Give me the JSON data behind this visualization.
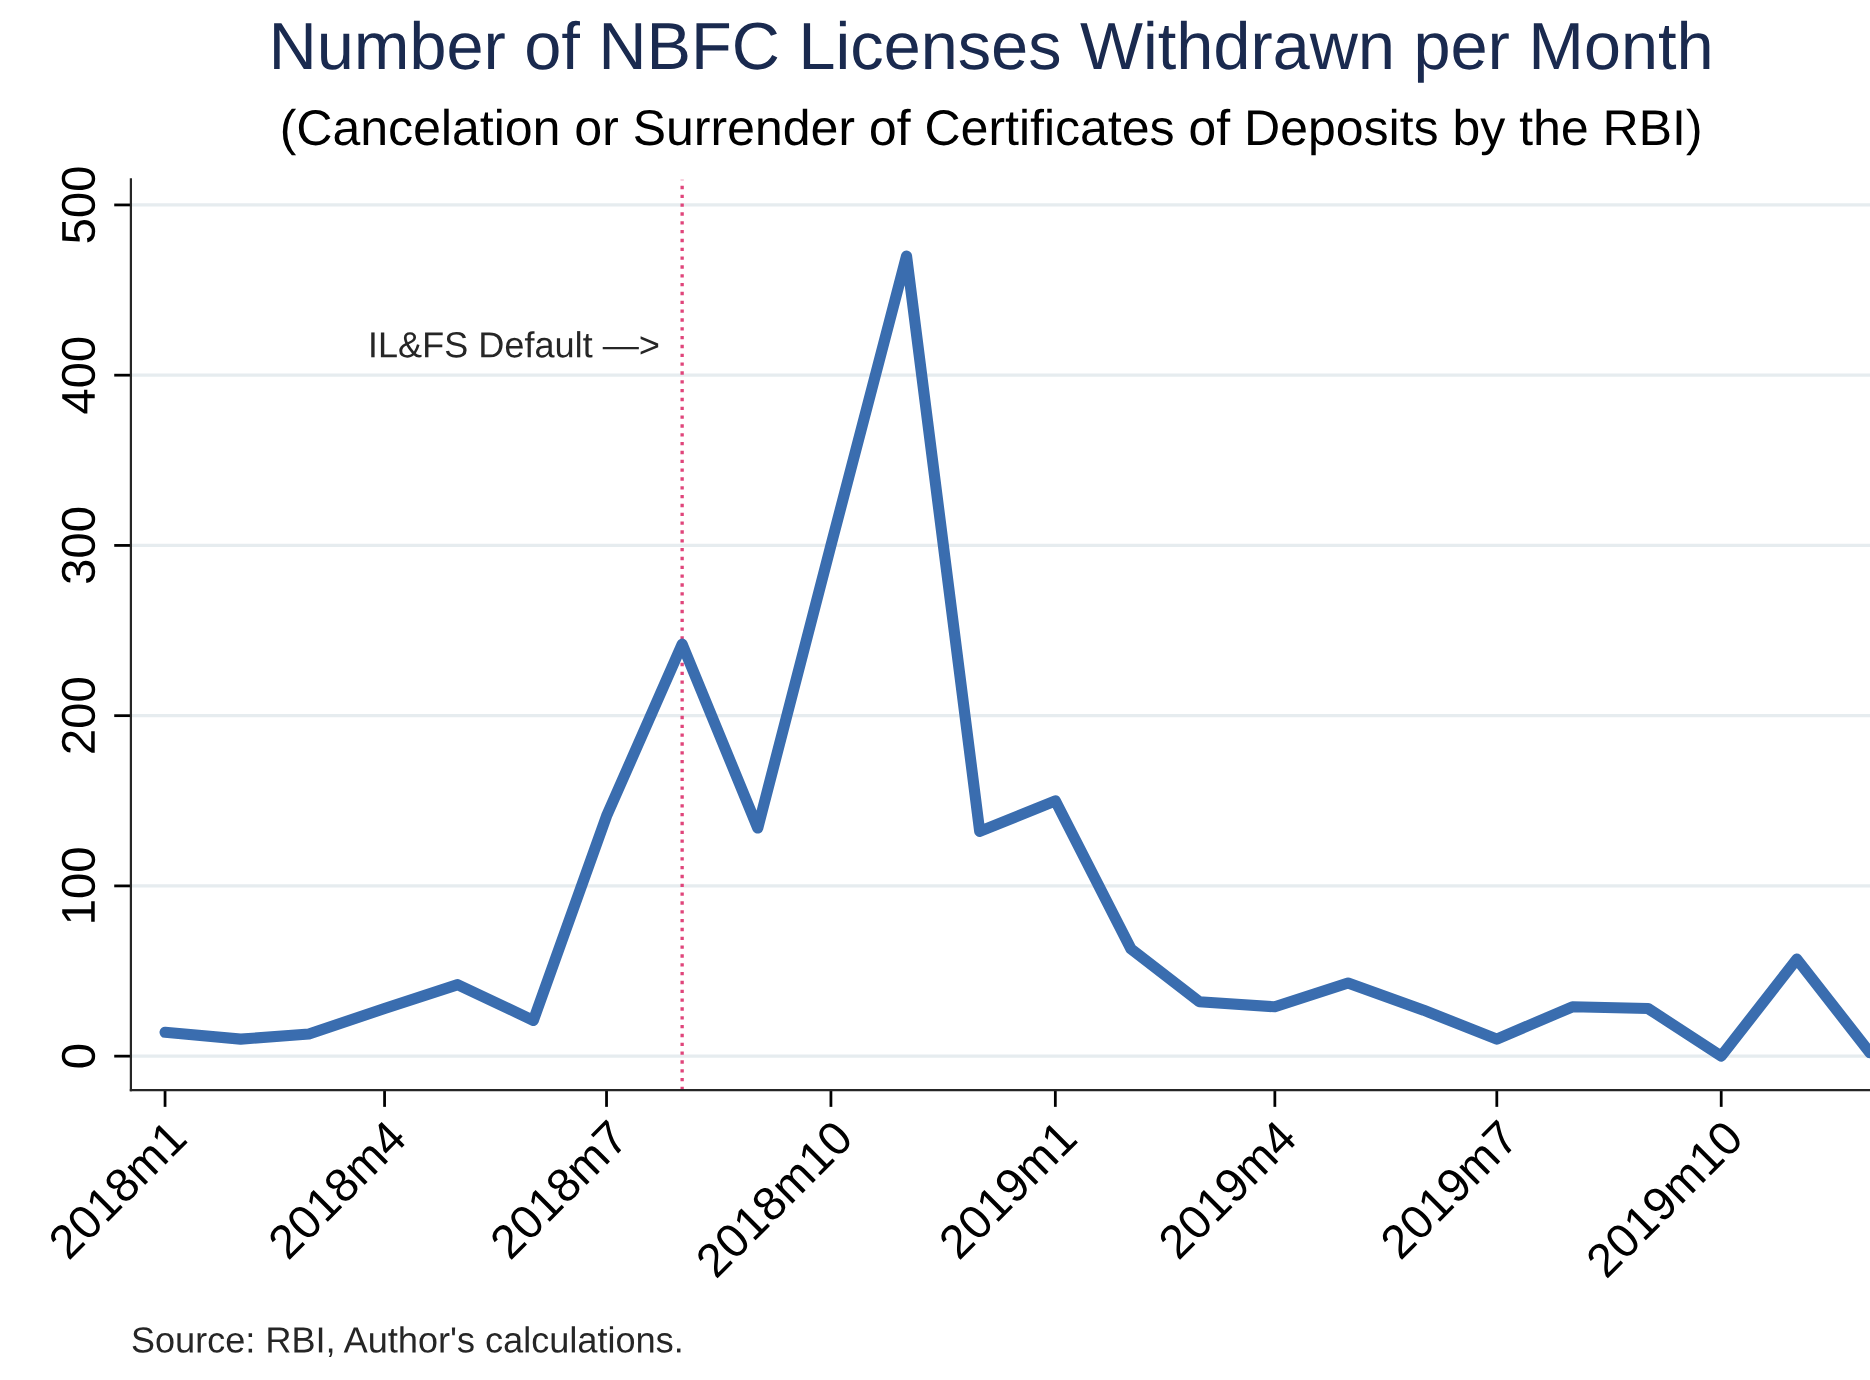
{
  "chart_data": {
    "type": "line",
    "title": "Number of NBFC Licenses Withdrawn per Month",
    "subtitle": "(Cancelation or Surrender of Certificates of Deposits by the RBI)",
    "x": [
      "2018-01",
      "2018-02",
      "2018-03",
      "2018-04",
      "2018-05",
      "2018-06",
      "2018-07",
      "2018-08",
      "2018-09",
      "2018-10",
      "2018-11",
      "2018-12",
      "2019-01",
      "2019-02",
      "2019-03",
      "2019-04",
      "2019-05",
      "2019-06",
      "2019-07",
      "2019-08",
      "2019-09",
      "2019-10",
      "2019-11",
      "2019-12"
    ],
    "series": [
      {
        "color": "#3a6daf",
        "values": [
          14,
          10,
          13,
          28,
          42,
          21,
          141,
          242,
          134,
          300,
          470,
          132,
          150,
          63,
          32,
          29,
          43,
          27,
          10,
          29,
          28,
          0,
          57,
          2
        ]
      }
    ],
    "xlim": [
      "2017-12-18",
      "2019-12-01"
    ],
    "xticks": [
      {
        "value": "2018-01",
        "label": "2018m1"
      },
      {
        "value": "2018-04",
        "label": "2018m4"
      },
      {
        "value": "2018-07",
        "label": "2018m7"
      },
      {
        "value": "2018-10",
        "label": "2018m10"
      },
      {
        "value": "2019-01",
        "label": "2019m1"
      },
      {
        "value": "2019-04",
        "label": "2019m4"
      },
      {
        "value": "2019-07",
        "label": "2019m7"
      },
      {
        "value": "2019-10",
        "label": "2019m10"
      }
    ],
    "ylim": [
      -20,
      515
    ],
    "yticks": [
      0,
      100,
      200,
      300,
      400,
      500
    ],
    "ref_lines": [
      {
        "axis": "x",
        "value": "2018-08",
        "color": "#e0457b",
        "line_style": "dotted"
      }
    ],
    "annotations": [
      {
        "text": "IL&FS Default —>",
        "x": "2018-08",
        "y": 416
      },
      "Source: RBI, Author's calculations."
    ],
    "grid": "y",
    "line_style": "solid",
    "marker": "none"
  }
}
